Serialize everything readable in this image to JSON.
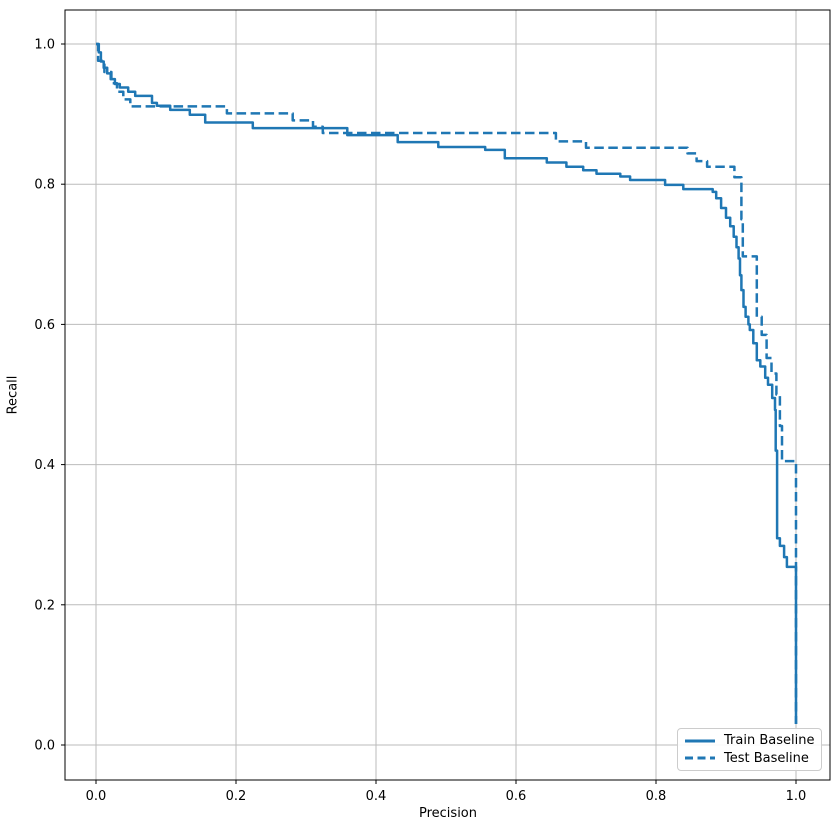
{
  "figure": {
    "background": "#ffffff"
  },
  "chart_data": {
    "type": "line",
    "title": "",
    "xlabel": "Precision",
    "ylabel": "Recall",
    "xlim": [
      -0.044,
      1.049
    ],
    "ylim": [
      -0.05,
      1.048
    ],
    "xticks": [
      0.0,
      0.2,
      0.4,
      0.6,
      0.8,
      1.0
    ],
    "yticks": [
      0.0,
      0.2,
      0.4,
      0.6,
      0.8,
      1.0
    ],
    "grid": true,
    "grid_color": "#bbbbbb",
    "spine_color": "#000000",
    "line_color": "#1f77b4",
    "legend": {
      "position": "lower right",
      "items": [
        "Train Baseline",
        "Test Baseline"
      ]
    },
    "series": [
      {
        "name": "Train Baseline",
        "style": "solid",
        "color": "#1f77b4",
        "points": [
          [
            0.0,
            1.0
          ],
          [
            0.004,
            1.0
          ],
          [
            0.004,
            0.988
          ],
          [
            0.007,
            0.988
          ],
          [
            0.007,
            0.975
          ],
          [
            0.011,
            0.975
          ],
          [
            0.011,
            0.966
          ],
          [
            0.016,
            0.966
          ],
          [
            0.016,
            0.958
          ],
          [
            0.021,
            0.958
          ],
          [
            0.021,
            0.95
          ],
          [
            0.027,
            0.95
          ],
          [
            0.027,
            0.943
          ],
          [
            0.034,
            0.943
          ],
          [
            0.034,
            0.938
          ],
          [
            0.046,
            0.938
          ],
          [
            0.046,
            0.932
          ],
          [
            0.056,
            0.932
          ],
          [
            0.056,
            0.926
          ],
          [
            0.08,
            0.926
          ],
          [
            0.08,
            0.916
          ],
          [
            0.087,
            0.916
          ],
          [
            0.087,
            0.912
          ],
          [
            0.106,
            0.912
          ],
          [
            0.106,
            0.906
          ],
          [
            0.134,
            0.906
          ],
          [
            0.134,
            0.899
          ],
          [
            0.156,
            0.899
          ],
          [
            0.156,
            0.888
          ],
          [
            0.224,
            0.888
          ],
          [
            0.224,
            0.88
          ],
          [
            0.359,
            0.88
          ],
          [
            0.359,
            0.87
          ],
          [
            0.431,
            0.87
          ],
          [
            0.431,
            0.86
          ],
          [
            0.489,
            0.86
          ],
          [
            0.489,
            0.853
          ],
          [
            0.556,
            0.853
          ],
          [
            0.556,
            0.849
          ],
          [
            0.584,
            0.849
          ],
          [
            0.584,
            0.837
          ],
          [
            0.644,
            0.837
          ],
          [
            0.644,
            0.831
          ],
          [
            0.672,
            0.831
          ],
          [
            0.672,
            0.825
          ],
          [
            0.696,
            0.825
          ],
          [
            0.696,
            0.82
          ],
          [
            0.715,
            0.82
          ],
          [
            0.715,
            0.815
          ],
          [
            0.749,
            0.815
          ],
          [
            0.749,
            0.811
          ],
          [
            0.763,
            0.811
          ],
          [
            0.763,
            0.806
          ],
          [
            0.813,
            0.806
          ],
          [
            0.813,
            0.799
          ],
          [
            0.839,
            0.799
          ],
          [
            0.839,
            0.793
          ],
          [
            0.881,
            0.793
          ],
          [
            0.881,
            0.789
          ],
          [
            0.886,
            0.789
          ],
          [
            0.886,
            0.78
          ],
          [
            0.893,
            0.78
          ],
          [
            0.893,
            0.766
          ],
          [
            0.9,
            0.766
          ],
          [
            0.9,
            0.752
          ],
          [
            0.906,
            0.752
          ],
          [
            0.906,
            0.74
          ],
          [
            0.911,
            0.74
          ],
          [
            0.911,
            0.725
          ],
          [
            0.915,
            0.725
          ],
          [
            0.915,
            0.71
          ],
          [
            0.918,
            0.71
          ],
          [
            0.918,
            0.694
          ],
          [
            0.92,
            0.694
          ],
          [
            0.92,
            0.67
          ],
          [
            0.922,
            0.67
          ],
          [
            0.922,
            0.649
          ],
          [
            0.925,
            0.649
          ],
          [
            0.925,
            0.625
          ],
          [
            0.928,
            0.625
          ],
          [
            0.928,
            0.611
          ],
          [
            0.932,
            0.611
          ],
          [
            0.932,
            0.6
          ],
          [
            0.934,
            0.6
          ],
          [
            0.934,
            0.592
          ],
          [
            0.939,
            0.592
          ],
          [
            0.939,
            0.573
          ],
          [
            0.944,
            0.573
          ],
          [
            0.944,
            0.549
          ],
          [
            0.949,
            0.549
          ],
          [
            0.949,
            0.54
          ],
          [
            0.956,
            0.54
          ],
          [
            0.956,
            0.524
          ],
          [
            0.96,
            0.524
          ],
          [
            0.96,
            0.514
          ],
          [
            0.966,
            0.514
          ],
          [
            0.966,
            0.495
          ],
          [
            0.97,
            0.495
          ],
          [
            0.97,
            0.478
          ],
          [
            0.971,
            0.478
          ],
          [
            0.971,
            0.42
          ],
          [
            0.973,
            0.42
          ],
          [
            0.973,
            0.295
          ],
          [
            0.977,
            0.295
          ],
          [
            0.977,
            0.284
          ],
          [
            0.983,
            0.284
          ],
          [
            0.983,
            0.268
          ],
          [
            0.987,
            0.268
          ],
          [
            0.987,
            0.254
          ],
          [
            1.0,
            0.254
          ],
          [
            1.0,
            0.03
          ]
        ]
      },
      {
        "name": "Test Baseline",
        "style": "dashed",
        "color": "#1f77b4",
        "points": [
          [
            0.0,
            1.0
          ],
          [
            0.003,
            1.0
          ],
          [
            0.003,
            0.976
          ],
          [
            0.012,
            0.976
          ],
          [
            0.012,
            0.96
          ],
          [
            0.022,
            0.96
          ],
          [
            0.022,
            0.944
          ],
          [
            0.03,
            0.944
          ],
          [
            0.03,
            0.932
          ],
          [
            0.039,
            0.932
          ],
          [
            0.039,
            0.921
          ],
          [
            0.049,
            0.921
          ],
          [
            0.049,
            0.911
          ],
          [
            0.187,
            0.911
          ],
          [
            0.187,
            0.901
          ],
          [
            0.281,
            0.901
          ],
          [
            0.281,
            0.891
          ],
          [
            0.31,
            0.891
          ],
          [
            0.31,
            0.882
          ],
          [
            0.324,
            0.882
          ],
          [
            0.324,
            0.873
          ],
          [
            0.657,
            0.873
          ],
          [
            0.657,
            0.861
          ],
          [
            0.7,
            0.861
          ],
          [
            0.7,
            0.852
          ],
          [
            0.845,
            0.852
          ],
          [
            0.845,
            0.844
          ],
          [
            0.858,
            0.844
          ],
          [
            0.858,
            0.833
          ],
          [
            0.873,
            0.833
          ],
          [
            0.873,
            0.825
          ],
          [
            0.912,
            0.825
          ],
          [
            0.912,
            0.81
          ],
          [
            0.922,
            0.81
          ],
          [
            0.922,
            0.75
          ],
          [
            0.924,
            0.75
          ],
          [
            0.924,
            0.697
          ],
          [
            0.944,
            0.697
          ],
          [
            0.944,
            0.611
          ],
          [
            0.951,
            0.611
          ],
          [
            0.951,
            0.585
          ],
          [
            0.958,
            0.585
          ],
          [
            0.958,
            0.552
          ],
          [
            0.965,
            0.552
          ],
          [
            0.965,
            0.53
          ],
          [
            0.972,
            0.53
          ],
          [
            0.972,
            0.5
          ],
          [
            0.977,
            0.5
          ],
          [
            0.977,
            0.455
          ],
          [
            0.98,
            0.455
          ],
          [
            0.98,
            0.405
          ],
          [
            1.0,
            0.405
          ],
          [
            1.0,
            0.03
          ]
        ]
      }
    ]
  }
}
